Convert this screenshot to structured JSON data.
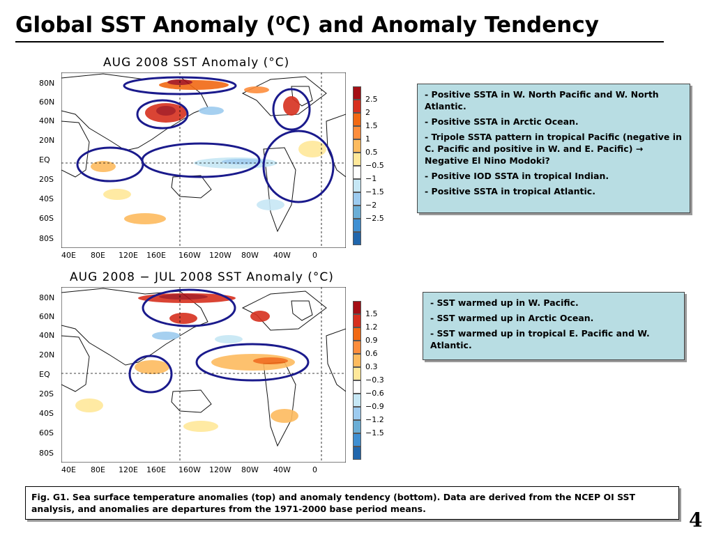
{
  "title": "Global SST Anomaly (⁰C) and Anomaly Tendency",
  "maps": [
    {
      "title": "AUG 2008 SST Anomaly (°C)",
      "lat_labels": [
        "80N",
        "60N",
        "40N",
        "20N",
        "EQ",
        "20S",
        "40S",
        "60S",
        "80S"
      ],
      "lon_labels": [
        "40E",
        "80E",
        "120E",
        "160E",
        "160W",
        "120W",
        "80W",
        "40W",
        "0"
      ],
      "colorbar_labels": [
        "2.5",
        "2",
        "1.5",
        "1",
        "0.5",
        "−0.5",
        "−1",
        "−1.5",
        "−2",
        "−2.5"
      ]
    },
    {
      "title": "AUG 2008 − JUL 2008 SST Anomaly (°C)",
      "lat_labels": [
        "80N",
        "60N",
        "40N",
        "20N",
        "EQ",
        "20S",
        "40S",
        "60S",
        "80S"
      ],
      "lon_labels": [
        "40E",
        "80E",
        "120E",
        "160E",
        "160W",
        "120W",
        "80W",
        "40W",
        "0"
      ],
      "colorbar_labels": [
        "1.5",
        "1.2",
        "0.9",
        "0.6",
        "0.3",
        "−0.3",
        "−0.6",
        "−0.9",
        "−1.2",
        "−1.5"
      ]
    }
  ],
  "colorbar_colors": [
    "#a50f15",
    "#d7301f",
    "#f16913",
    "#fd8d3c",
    "#fdbb5f",
    "#ffe89a",
    "#ffffff",
    "#c6e7f5",
    "#9dcbef",
    "#6baed6",
    "#3f8fd2",
    "#2166ac"
  ],
  "notes_top": [
    {
      "dash": "- ",
      "text": "Positive SSTA in W.  North Pacific and W. North Atlantic."
    },
    {
      "dash": "- ",
      "text": "Positive SSTA in Arctic Ocean."
    },
    {
      "dash": "- ",
      "text": "Tripole SSTA pattern in tropical Pacific (negative in C. Pacific and positive in W. and E. Pacific) → Negative El Nino Modoki?"
    },
    {
      "dash": "- ",
      "text": "Positive IOD SSTA in tropical Indian."
    },
    {
      "dash": "- ",
      "text": "Positive SSTA in tropical Atlantic."
    }
  ],
  "notes_bottom": [
    {
      "dash": "- ",
      "text": "SST warmed up in W. Pacific."
    },
    {
      "dash": "- ",
      "text": "SST warmed up in Arctic Ocean."
    },
    {
      "dash": "- ",
      "text": "SST warmed up in tropical E. Pacific and W. Atlantic."
    }
  ],
  "caption": "Fig. G1. Sea surface temperature anomalies (top) and anomaly tendency (bottom). Data are derived from the NCEP OI SST analysis, and anomalies are departures from the 1971-2000 base period means.",
  "page_number": "4",
  "colors": {
    "note_bg": "#b8dde3",
    "ellipse": "#1a1a8c"
  }
}
